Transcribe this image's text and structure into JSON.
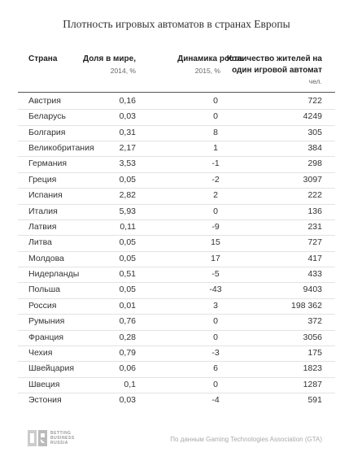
{
  "title": "Плотность игровых автоматов в странах Европы",
  "table": {
    "columns": [
      {
        "label": [
          "Страна"
        ]
      },
      {
        "label": [
          "Доля в мире,"
        ],
        "unit": "2014, %"
      },
      {
        "label": [
          "Динамика роста"
        ],
        "unit": "2015, %"
      },
      {
        "label": [
          "Количество жителей на",
          "один игровой автомат"
        ],
        "unit": "чел."
      }
    ],
    "rows": [
      [
        "Австрия",
        "0,16",
        "0",
        "722"
      ],
      [
        "Беларусь",
        "0,03",
        "0",
        "4249"
      ],
      [
        "Болгария",
        "0,31",
        "8",
        "305"
      ],
      [
        "Великобритания",
        "2,17",
        "1",
        "384"
      ],
      [
        "Германия",
        "3,53",
        "-1",
        "298"
      ],
      [
        "Греция",
        "0,05",
        "-2",
        "3097"
      ],
      [
        "Испания",
        "2,82",
        "2",
        "222"
      ],
      [
        "Италия",
        "5,93",
        "0",
        "136"
      ],
      [
        "Латвия",
        "0,11",
        "-9",
        "231"
      ],
      [
        "Литва",
        "0,05",
        "15",
        "727"
      ],
      [
        "Молдова",
        "0,05",
        "17",
        "417"
      ],
      [
        "Нидерланды",
        "0,51",
        "-5",
        "433"
      ],
      [
        "Польша",
        "0,05",
        "-43",
        "9403"
      ],
      [
        "Россия",
        "0,01",
        "3",
        "198 362"
      ],
      [
        "Румыния",
        "0,76",
        "0",
        "372"
      ],
      [
        "Франция",
        "0,28",
        "0",
        "3056"
      ],
      [
        "Чехия",
        "0,79",
        "-3",
        "175"
      ],
      [
        "Швейцария",
        "0,06",
        "6",
        "1823"
      ],
      [
        "Швеция",
        "0,1",
        "0",
        "1287"
      ],
      [
        "Эстония",
        "0,03",
        "-4",
        "591"
      ]
    ]
  },
  "footer": {
    "logo": [
      "BETTING",
      "BUSINESS",
      "RUSSIA"
    ],
    "source": "По данным Gaming Technologies Association (GTA)"
  }
}
